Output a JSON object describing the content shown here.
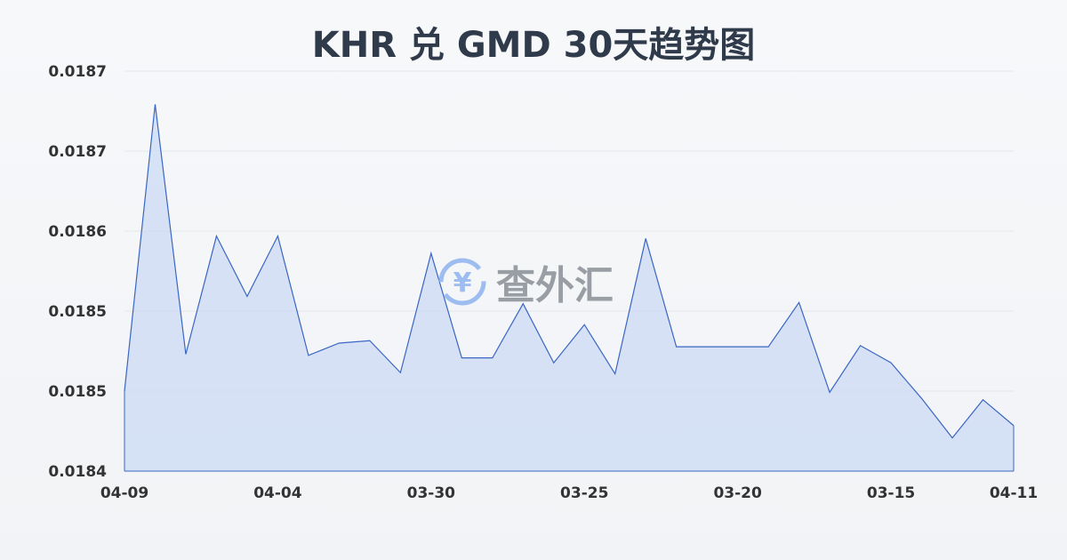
{
  "chart_data": {
    "type": "area",
    "title": "KHR 兑 GMD 30天趋势图",
    "xlabel": "",
    "ylabel": "",
    "categories": [
      "04-09",
      "",
      "",
      "",
      "",
      "04-04",
      "",
      "",
      "",
      "",
      "03-30",
      "",
      "",
      "",
      "",
      "03-25",
      "",
      "",
      "",
      "",
      "03-20",
      "",
      "",
      "",
      "",
      "03-15",
      "",
      "",
      "",
      "04-11"
    ],
    "values": [
      0.018465,
      0.018698,
      0.018495,
      0.018591,
      0.018542,
      0.018591,
      0.018494,
      0.018504,
      0.018506,
      0.01848,
      0.018577,
      0.018492,
      0.018492,
      0.018536,
      0.018488,
      0.018519,
      0.018479,
      0.018589,
      0.018501,
      0.018501,
      0.018501,
      0.018501,
      0.018537,
      0.018464,
      0.018502,
      0.018488,
      0.018459,
      0.018427,
      0.018458,
      0.018437
    ],
    "ylim": [
      0.0184,
      0.018725
    ],
    "y_ticks": [
      0.0184,
      0.018465,
      0.01853,
      0.018595,
      0.01866,
      0.018725
    ],
    "y_tick_labels": [
      "0.0184",
      "0.0185",
      "0.0185",
      "0.0186",
      "0.0187",
      "0.0187"
    ],
    "grid": true,
    "line_color": "#3a66c4",
    "fill_color": "#c9d8f3"
  },
  "watermark": {
    "text": "查外汇",
    "symbol": "¥"
  }
}
